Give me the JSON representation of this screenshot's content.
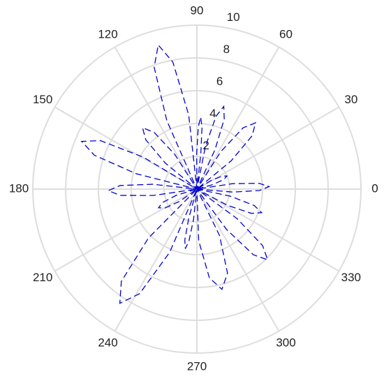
{
  "chart_data": {
    "type": "polar",
    "x": [
      352,
      355.3,
      358.7,
      2,
      5.3,
      8.7,
      12,
      15.8,
      19.7,
      23.5,
      27.3,
      31.2,
      35,
      39.5,
      44,
      48.5,
      53,
      57.5,
      62,
      65.3,
      68.7,
      72,
      75.3,
      78.7,
      82,
      83.7,
      85.3,
      87,
      88.7,
      90.3,
      92,
      96.3,
      100.7,
      105,
      109.3,
      113.7,
      118,
      122.5,
      127,
      131.5,
      136,
      140.5,
      145,
      149.2,
      153.3,
      157.5,
      161.7,
      165.8,
      170,
      173.7,
      177.3,
      181,
      184.7,
      188.3,
      192,
      196.7,
      201.3,
      206,
      210.7,
      215.3,
      220,
      225.3,
      230.7,
      236,
      241.3,
      246.7,
      252,
      254.3,
      256.7,
      259,
      261.3,
      263.7,
      266,
      272,
      278,
      284,
      290,
      296,
      302,
      306.3,
      310.7,
      315,
      319.3,
      323.7,
      328,
      332,
      336,
      340,
      344,
      348
    ],
    "values": [
      0,
      2.2,
      3.81,
      4.4,
      3.81,
      2.2,
      0,
      1,
      1.73,
      2,
      1.73,
      1,
      0,
      2.7,
      4.68,
      5.4,
      4.68,
      2.7,
      0,
      2.65,
      4.59,
      5.3,
      4.59,
      2.65,
      0,
      2.2,
      3.81,
      4.4,
      3.81,
      2.2,
      0,
      4.55,
      7.88,
      9.1,
      7.88,
      4.55,
      0,
      2.5,
      4.33,
      5,
      4.33,
      2.5,
      0,
      3.8,
      6.58,
      7.6,
      6.58,
      3.8,
      0,
      2.7,
      4.68,
      5.4,
      4.68,
      2.7,
      0,
      1.3,
      2.25,
      2.6,
      2.25,
      1.3,
      0,
      4.2,
      7.27,
      8.4,
      7.27,
      4.2,
      0,
      1.85,
      3.2,
      3.7,
      3.2,
      1.85,
      0,
      3.15,
      5.46,
      6.3,
      5.46,
      3.15,
      0,
      3.05,
      5.28,
      6.1,
      5.28,
      3.05,
      0,
      2.1,
      3.64,
      4.2,
      3.64,
      2.1
    ],
    "color": "#0000cc",
    "rlim": [
      0,
      10
    ],
    "rticks": [
      2,
      4,
      6,
      8,
      10
    ],
    "thetaticks": [
      0,
      30,
      60,
      90,
      120,
      150,
      180,
      210,
      240,
      270,
      300,
      330
    ],
    "grid": true
  }
}
